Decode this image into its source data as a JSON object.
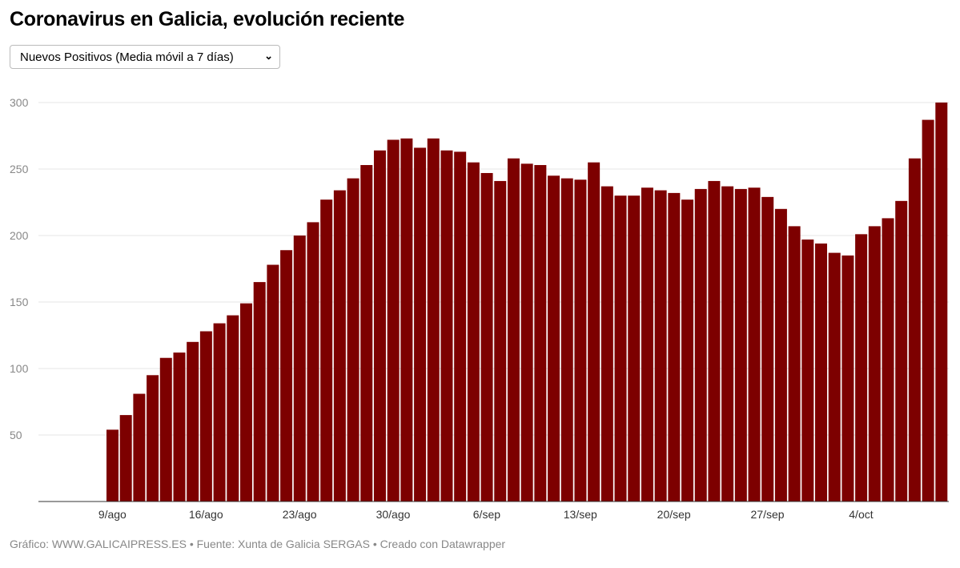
{
  "title": "Coronavirus en Galicia, evolución reciente",
  "selector": {
    "value": "Nuevos Positivos (Media móvil a 7 días)",
    "icon": "chevron-down-icon"
  },
  "footer": "Gráfico: WWW.GALICAIPRESS.ES • Fuente: Xunta de Galicia SERGAS • Creado con Datawrapper",
  "chart_data": {
    "type": "bar",
    "color": "#7d0000",
    "ylim": [
      0,
      300
    ],
    "yticks": [
      50,
      100,
      150,
      200,
      250,
      300
    ],
    "grid": true,
    "xtick_labels": [
      "9/ago",
      "16/ago",
      "23/ago",
      "30/ago",
      "6/sep",
      "13/sep",
      "20/sep",
      "27/sep",
      "4/oct"
    ],
    "start_date": "9/ago",
    "values": [
      54,
      65,
      81,
      95,
      108,
      112,
      120,
      128,
      134,
      140,
      149,
      165,
      178,
      189,
      200,
      210,
      227,
      234,
      243,
      253,
      264,
      272,
      273,
      266,
      273,
      264,
      263,
      255,
      247,
      241,
      258,
      254,
      253,
      245,
      243,
      242,
      255,
      237,
      230,
      230,
      236,
      234,
      232,
      227,
      235,
      241,
      237,
      235,
      236,
      229,
      220,
      207,
      197,
      194,
      187,
      185,
      201,
      207,
      213,
      226,
      258,
      287,
      300
    ]
  }
}
